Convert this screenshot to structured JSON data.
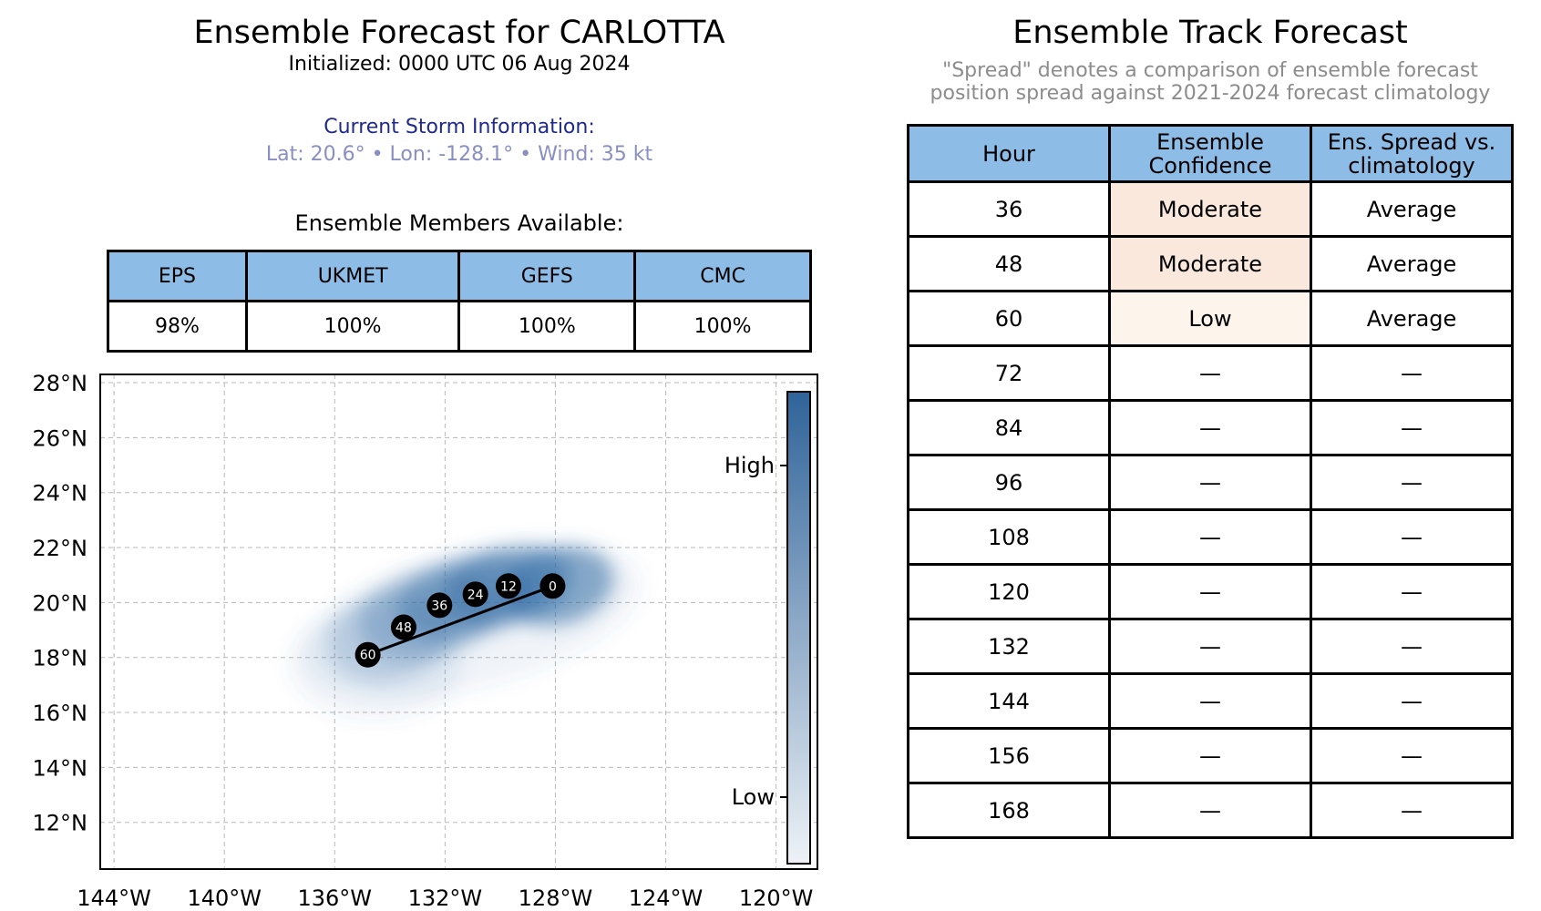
{
  "left": {
    "title": "Ensemble Forecast for CARLOTTA",
    "initialized": "Initialized: 0000 UTC 06 Aug 2024",
    "storm_heading": "Current Storm Information:",
    "storm_line": "Lat: 20.6°  • Lon: -128.1°  • Wind: 35 kt",
    "members_heading": "Ensemble Members Available:",
    "members": [
      {
        "model": "EPS",
        "value": "98%"
      },
      {
        "model": "UKMET",
        "value": "100%"
      },
      {
        "model": "GEFS",
        "value": "100%"
      },
      {
        "model": "CMC",
        "value": "100%"
      }
    ]
  },
  "chart_data": {
    "type": "scatter",
    "title": "",
    "xlabel": "",
    "ylabel": "",
    "xlim": [
      -144.5,
      -118.5
    ],
    "ylim": [
      10.3,
      28.3
    ],
    "x_ticks": [
      -144,
      -140,
      -136,
      -132,
      -128,
      -124,
      -120
    ],
    "x_tick_labels": [
      "144°W",
      "140°W",
      "136°W",
      "132°W",
      "128°W",
      "124°W",
      "120°W"
    ],
    "y_ticks": [
      12,
      14,
      16,
      18,
      20,
      22,
      24,
      26,
      28
    ],
    "y_tick_labels": [
      "12°N",
      "14°N",
      "16°N",
      "18°N",
      "20°N",
      "22°N",
      "24°N",
      "26°N",
      "28°N"
    ],
    "grid": true,
    "track_points": [
      {
        "label": "0",
        "lon": -128.1,
        "lat": 20.6
      },
      {
        "label": "12",
        "lon": -129.7,
        "lat": 20.6
      },
      {
        "label": "24",
        "lon": -130.9,
        "lat": 20.3
      },
      {
        "label": "36",
        "lon": -132.2,
        "lat": 19.9
      },
      {
        "label": "48",
        "lon": -133.5,
        "lat": 19.1
      },
      {
        "label": "60",
        "lon": -134.8,
        "lat": 18.1
      }
    ],
    "colorbar": {
      "high_label": "High",
      "low_label": "Low",
      "color_high": "#2f6399",
      "color_low": "#eef2f7"
    },
    "density_color": "#2e6aa3"
  },
  "right": {
    "title": "Ensemble Track Forecast",
    "note_line1": "\"Spread\" denotes a comparison of ensemble forecast",
    "note_line2": "position spread against 2021-2024 forecast climatology",
    "headers": {
      "hour": "Hour",
      "confidence_1": "Ensemble",
      "confidence_2": "Confidence",
      "spread_1": "Ens. Spread vs.",
      "spread_2": "climatology"
    },
    "rows": [
      {
        "hour": "36",
        "confidence": "Moderate",
        "spread": "Average",
        "conf_color": "#f9e8db"
      },
      {
        "hour": "48",
        "confidence": "Moderate",
        "spread": "Average",
        "conf_color": "#f9e8db"
      },
      {
        "hour": "60",
        "confidence": "Low",
        "spread": "Average",
        "conf_color": "#fdf5ec"
      },
      {
        "hour": "72",
        "confidence": "—",
        "spread": "—",
        "conf_color": "#ffffff"
      },
      {
        "hour": "84",
        "confidence": "—",
        "spread": "—",
        "conf_color": "#ffffff"
      },
      {
        "hour": "96",
        "confidence": "—",
        "spread": "—",
        "conf_color": "#ffffff"
      },
      {
        "hour": "108",
        "confidence": "—",
        "spread": "—",
        "conf_color": "#ffffff"
      },
      {
        "hour": "120",
        "confidence": "—",
        "spread": "—",
        "conf_color": "#ffffff"
      },
      {
        "hour": "132",
        "confidence": "—",
        "spread": "—",
        "conf_color": "#ffffff"
      },
      {
        "hour": "144",
        "confidence": "—",
        "spread": "—",
        "conf_color": "#ffffff"
      },
      {
        "hour": "156",
        "confidence": "—",
        "spread": "—",
        "conf_color": "#ffffff"
      },
      {
        "hour": "168",
        "confidence": "—",
        "spread": "—",
        "conf_color": "#ffffff"
      }
    ],
    "header_color": "#8dbde6"
  }
}
